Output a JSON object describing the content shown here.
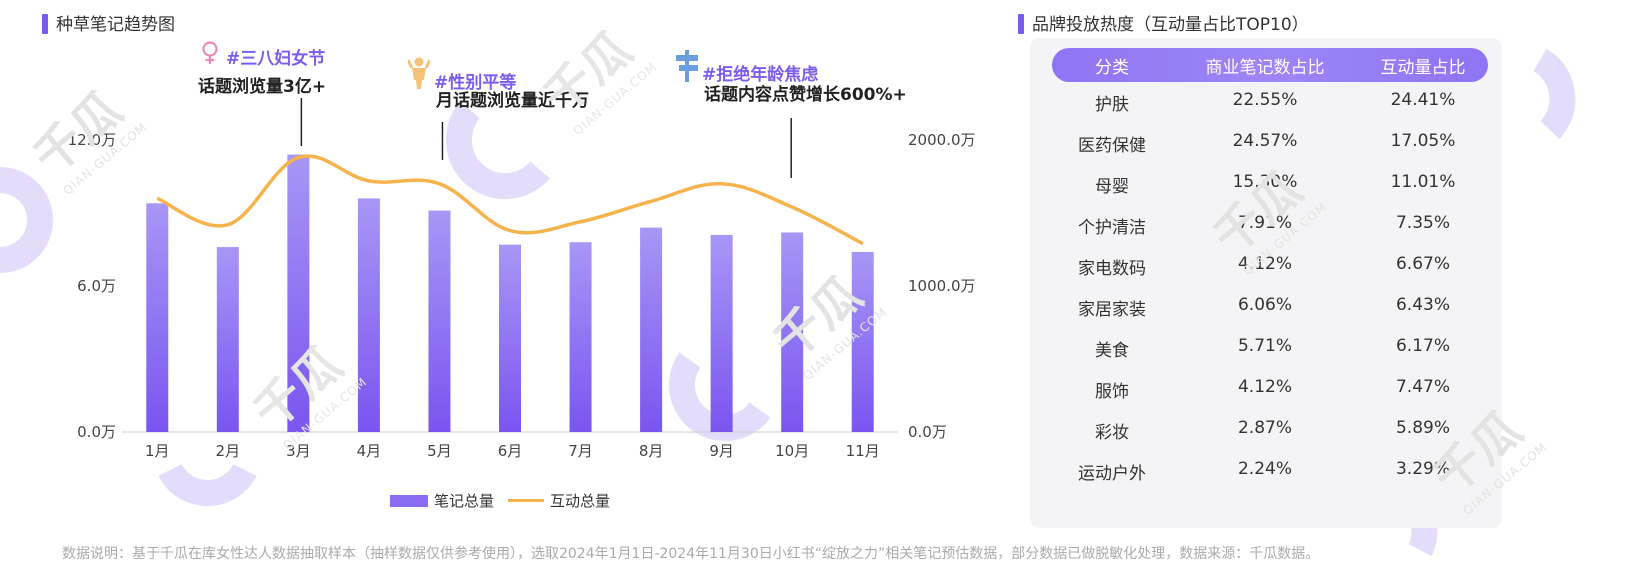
{
  "left_title": "种草笔记趋势图",
  "right_title": "品牌投放热度（互动量占比TOP10）",
  "annotations": [
    {
      "tag": "#三八妇女节",
      "desc": "话题浏览量3亿+",
      "icon": "female-symbol-icon"
    },
    {
      "tag": "#性别平等",
      "desc": "月话题浏览量近千万",
      "icon": "person-icon"
    },
    {
      "tag": "#拒绝年龄焦虑",
      "desc": "话题内容点赞增长600%+",
      "icon": "signpost-icon"
    }
  ],
  "legend": {
    "bar_label": "笔记总量",
    "line_label": "互动总量"
  },
  "chart_data": {
    "type": "bar",
    "categories": [
      "1月",
      "2月",
      "3月",
      "4月",
      "5月",
      "6月",
      "7月",
      "8月",
      "9月",
      "10月",
      "11月"
    ],
    "series": [
      {
        "name": "笔记总量",
        "type": "bar",
        "axis": "left",
        "values": [
          9.4,
          7.6,
          11.4,
          9.6,
          9.1,
          7.7,
          7.8,
          8.4,
          8.1,
          8.2,
          7.4
        ]
      },
      {
        "name": "互动总量",
        "type": "line",
        "axis": "right",
        "values": [
          1600,
          1420,
          1880,
          1720,
          1700,
          1380,
          1440,
          1580,
          1700,
          1540,
          1290
        ]
      }
    ],
    "left_axis": {
      "ticks": [
        "0.0万",
        "6.0万",
        "12.0万"
      ],
      "range": [
        0,
        12
      ]
    },
    "right_axis": {
      "ticks": [
        "0.0万",
        "1000.0万",
        "2000.0万"
      ],
      "range": [
        0,
        2000
      ]
    },
    "grid": false,
    "legend_position": "bottom",
    "colors": {
      "bar_top": "#a896f6",
      "bar_bottom": "#7a55f0",
      "line": "#f6b34c"
    }
  },
  "table": {
    "headers": [
      "分类",
      "商业笔记数占比",
      "互动量占比"
    ],
    "rows": [
      [
        "护肤",
        "22.55%",
        "24.41%"
      ],
      [
        "医药保健",
        "24.57%",
        "17.05%"
      ],
      [
        "母婴",
        "15.30%",
        "11.01%"
      ],
      [
        "个护清洁",
        "7.91%",
        "7.35%"
      ],
      [
        "家电数码",
        "4.12%",
        "6.67%"
      ],
      [
        "家居家装",
        "6.06%",
        "6.43%"
      ],
      [
        "美食",
        "5.71%",
        "6.17%"
      ],
      [
        "服饰",
        "4.12%",
        "7.47%"
      ],
      [
        "彩妆",
        "2.87%",
        "5.89%"
      ],
      [
        "运动户外",
        "2.24%",
        "3.29%"
      ]
    ]
  },
  "footer": "数据说明：基于千瓜在库女性达人数据抽取样本（抽样数据仅供参考使用），选取2024年1月1日-2024年11月30日小红书“绽放之力”相关笔记预估数据，部分数据已做脱敏化处理，数据来源：千瓜数据。",
  "watermark": {
    "brand": "千瓜",
    "domain": "QIAN-GUA.COM"
  },
  "colors": {
    "accent": "#7b5cf0",
    "tag": "#7b5cf0",
    "line": "#f6b34c",
    "panel": "#f4f4f6"
  }
}
